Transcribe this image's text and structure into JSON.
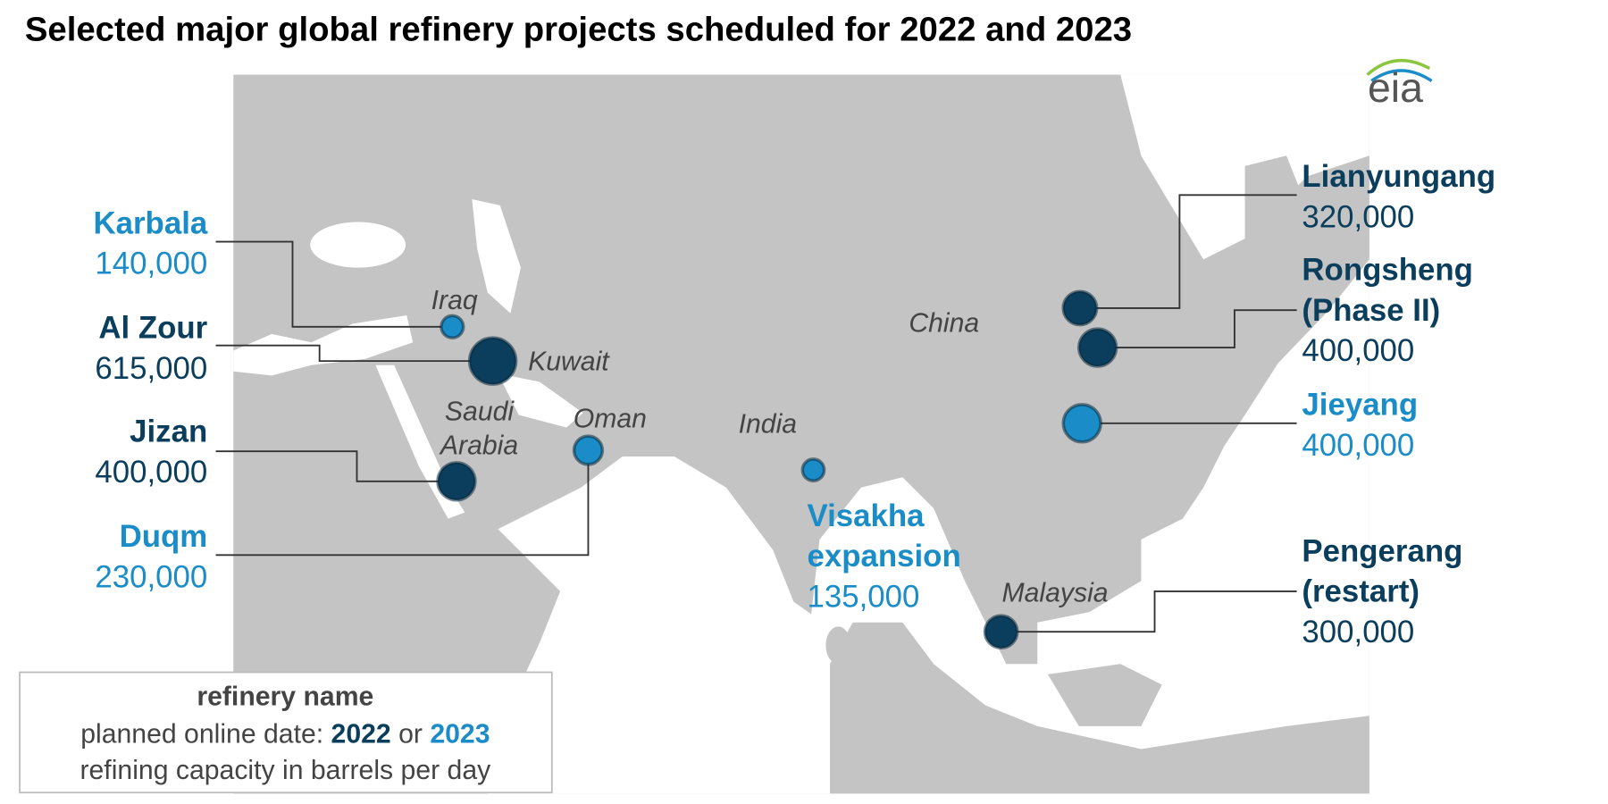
{
  "title": "Selected major global refinery projects scheduled for 2022 and 2023",
  "logo": "eia",
  "countries": [
    [
      "Iraq"
    ],
    [
      "Kuwait"
    ],
    [
      "Saudi",
      "Arabia"
    ],
    [
      "Oman"
    ],
    [
      "India"
    ],
    [
      "China"
    ],
    [
      "Malaysia"
    ]
  ],
  "refineries": [
    {
      "name": [
        "Karbala"
      ],
      "capacity": 140000,
      "capacity_label": "140,000",
      "color": "#1a8cc8"
    },
    {
      "name": [
        "Al Zour"
      ],
      "capacity": 615000,
      "capacity_label": "615,000",
      "color": "#0b3d5c"
    },
    {
      "name": [
        "Jizan"
      ],
      "capacity": 400000,
      "capacity_label": "400,000",
      "color": "#0b3d5c"
    },
    {
      "name": [
        "Duqm"
      ],
      "capacity": 230000,
      "capacity_label": "230,000",
      "color": "#1a8cc8"
    },
    {
      "name": [
        "Visakha",
        "expansion"
      ],
      "capacity": 135000,
      "capacity_label": "135,000",
      "color": "#1a8cc8"
    },
    {
      "name": [
        "Lianyungang"
      ],
      "capacity": 320000,
      "capacity_label": "320,000",
      "color": "#0b3d5c"
    },
    {
      "name": [
        "Rongsheng",
        "(Phase II)"
      ],
      "capacity": 400000,
      "capacity_label": "400,000",
      "color": "#0b3d5c"
    },
    {
      "name": [
        "Jieyang"
      ],
      "capacity": 400000,
      "capacity_label": "400,000",
      "color": "#1a8cc8"
    },
    {
      "name": [
        "Pengerang",
        "(restart)"
      ],
      "capacity": 300000,
      "capacity_label": "300,000",
      "color": "#0b3d5c"
    }
  ],
  "legend": {
    "name_line": "refinery name",
    "date_prefix": "planned online date:",
    "year_a": "2022",
    "year_a_color": "#0b3d5c",
    "joiner": "or",
    "year_b": "2023",
    "year_b_color": "#1a8cc8",
    "capacity_line": "refining capacity in barrels per day"
  }
}
